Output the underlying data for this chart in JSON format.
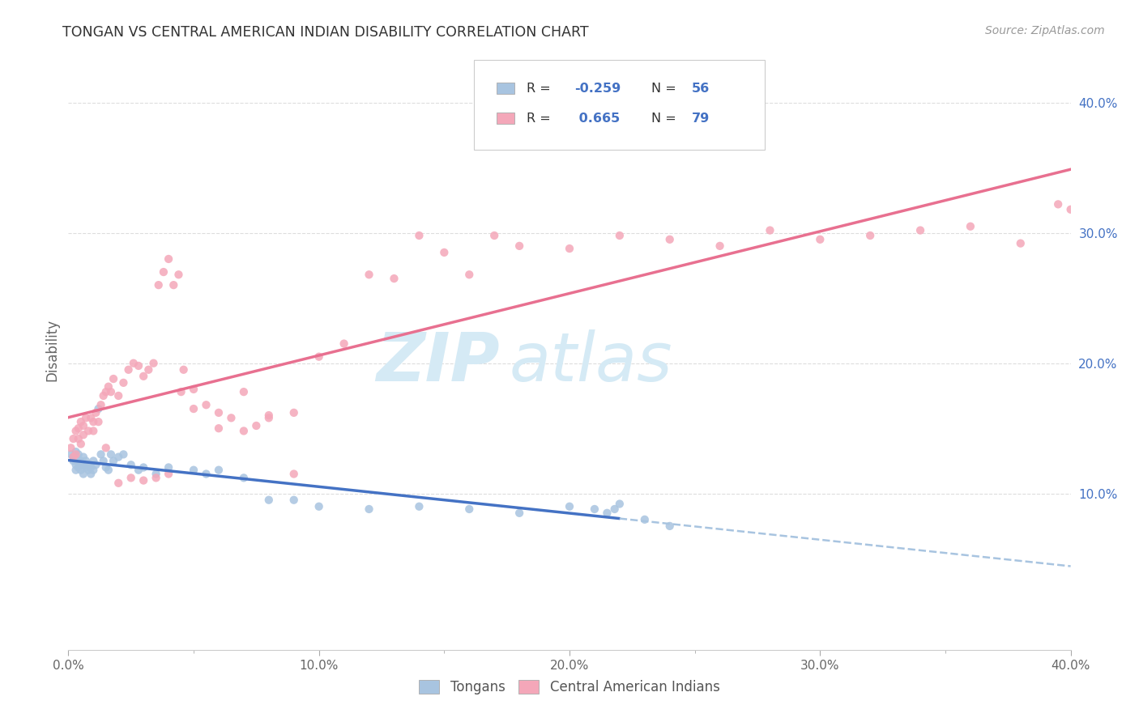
{
  "title": "TONGAN VS CENTRAL AMERICAN INDIAN DISABILITY CORRELATION CHART",
  "source": "Source: ZipAtlas.com",
  "ylabel": "Disability",
  "xlim": [
    0.0,
    0.4
  ],
  "ylim": [
    -0.02,
    0.44
  ],
  "plot_ylim": [
    -0.02,
    0.44
  ],
  "right_yticks": [
    0.1,
    0.2,
    0.3,
    0.4
  ],
  "right_ytick_labels": [
    "10.0%",
    "20.0%",
    "30.0%",
    "40.0%"
  ],
  "xtick_vals": [
    0.0,
    0.1,
    0.2,
    0.3,
    0.4
  ],
  "xtick_labels": [
    "0.0%",
    "10.0%",
    "20.0%",
    "30.0%",
    "40.0%"
  ],
  "tongan_color": "#a8c4e0",
  "central_color": "#f4a7b9",
  "line_blue": "#4472c4",
  "line_pink": "#e87090",
  "watermark_color": "#d5eaf5",
  "tongan_x": [
    0.001,
    0.002,
    0.002,
    0.003,
    0.003,
    0.003,
    0.004,
    0.004,
    0.004,
    0.005,
    0.005,
    0.005,
    0.006,
    0.006,
    0.006,
    0.007,
    0.007,
    0.008,
    0.008,
    0.009,
    0.009,
    0.01,
    0.01,
    0.011,
    0.012,
    0.013,
    0.014,
    0.015,
    0.016,
    0.017,
    0.018,
    0.02,
    0.022,
    0.025,
    0.028,
    0.03,
    0.035,
    0.04,
    0.05,
    0.055,
    0.06,
    0.07,
    0.08,
    0.09,
    0.1,
    0.12,
    0.14,
    0.16,
    0.18,
    0.2,
    0.21,
    0.215,
    0.218,
    0.22,
    0.23,
    0.24
  ],
  "tongan_y": [
    0.13,
    0.125,
    0.128,
    0.132,
    0.118,
    0.122,
    0.125,
    0.12,
    0.13,
    0.122,
    0.118,
    0.125,
    0.128,
    0.122,
    0.115,
    0.12,
    0.125,
    0.118,
    0.122,
    0.12,
    0.115,
    0.118,
    0.125,
    0.122,
    0.165,
    0.13,
    0.125,
    0.12,
    0.118,
    0.13,
    0.125,
    0.128,
    0.13,
    0.122,
    0.118,
    0.12,
    0.115,
    0.12,
    0.118,
    0.115,
    0.118,
    0.112,
    0.095,
    0.095,
    0.09,
    0.088,
    0.09,
    0.088,
    0.085,
    0.09,
    0.088,
    0.085,
    0.088,
    0.092,
    0.08,
    0.075
  ],
  "central_x": [
    0.001,
    0.002,
    0.002,
    0.003,
    0.003,
    0.004,
    0.004,
    0.005,
    0.005,
    0.006,
    0.006,
    0.007,
    0.008,
    0.009,
    0.01,
    0.011,
    0.012,
    0.013,
    0.014,
    0.015,
    0.016,
    0.017,
    0.018,
    0.02,
    0.022,
    0.024,
    0.026,
    0.028,
    0.03,
    0.032,
    0.034,
    0.036,
    0.038,
    0.04,
    0.042,
    0.044,
    0.046,
    0.05,
    0.055,
    0.06,
    0.065,
    0.07,
    0.075,
    0.08,
    0.09,
    0.1,
    0.11,
    0.12,
    0.13,
    0.14,
    0.15,
    0.16,
    0.17,
    0.18,
    0.2,
    0.22,
    0.24,
    0.26,
    0.28,
    0.3,
    0.32,
    0.34,
    0.36,
    0.38,
    0.395,
    0.4,
    0.01,
    0.015,
    0.02,
    0.025,
    0.03,
    0.035,
    0.04,
    0.045,
    0.05,
    0.06,
    0.07,
    0.08,
    0.09
  ],
  "central_y": [
    0.135,
    0.128,
    0.142,
    0.148,
    0.13,
    0.15,
    0.142,
    0.138,
    0.155,
    0.145,
    0.152,
    0.158,
    0.148,
    0.158,
    0.148,
    0.162,
    0.155,
    0.168,
    0.175,
    0.178,
    0.182,
    0.178,
    0.188,
    0.175,
    0.185,
    0.195,
    0.2,
    0.198,
    0.19,
    0.195,
    0.2,
    0.26,
    0.27,
    0.28,
    0.26,
    0.268,
    0.195,
    0.18,
    0.168,
    0.162,
    0.158,
    0.178,
    0.152,
    0.16,
    0.162,
    0.205,
    0.215,
    0.268,
    0.265,
    0.298,
    0.285,
    0.268,
    0.298,
    0.29,
    0.288,
    0.298,
    0.295,
    0.29,
    0.302,
    0.295,
    0.298,
    0.302,
    0.305,
    0.292,
    0.322,
    0.318,
    0.155,
    0.135,
    0.108,
    0.112,
    0.11,
    0.112,
    0.115,
    0.178,
    0.165,
    0.15,
    0.148,
    0.158,
    0.115
  ]
}
